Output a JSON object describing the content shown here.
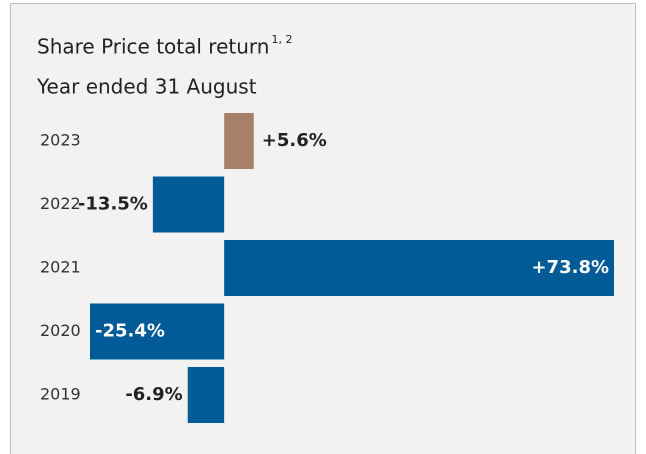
{
  "chart_data": {
    "type": "hbar",
    "title": "Share Price total return",
    "title_note": "1, 2",
    "subtitle": "Year ended 31 August",
    "categories": [
      "2023",
      "2022",
      "2021",
      "2020",
      "2019"
    ],
    "values": [
      5.6,
      -13.5,
      73.8,
      -25.4,
      -6.9
    ],
    "value_labels": [
      "+5.6%",
      "-13.5%",
      "+73.8%",
      "-25.4%",
      "-6.9%"
    ],
    "colors": [
      "#a88069",
      "#005b96",
      "#005b96",
      "#005b96",
      "#005b96"
    ]
  }
}
